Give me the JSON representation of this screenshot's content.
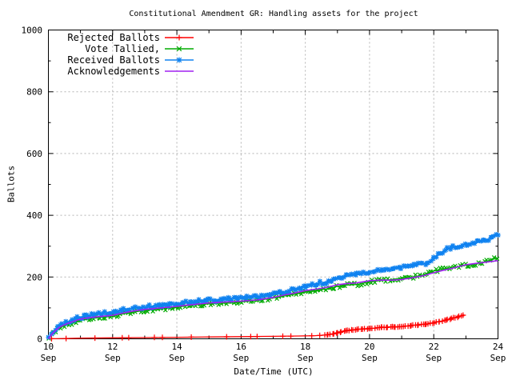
{
  "chart_data": {
    "type": "line",
    "title": "Constitutional Amendment GR: Handling assets for the project",
    "xlabel": "Date/Time (UTC)",
    "ylabel": "Ballots",
    "ylim": [
      0,
      1000
    ],
    "xlim_days": [
      10,
      24
    ],
    "grid": true,
    "legend_position": "top-left",
    "grid_color": "#b4b4b4",
    "y_ticks": [
      {
        "value": 0,
        "label": "0"
      },
      {
        "value": 200,
        "label": "200"
      },
      {
        "value": 400,
        "label": "400"
      },
      {
        "value": 600,
        "label": "600"
      },
      {
        "value": 800,
        "label": "800"
      },
      {
        "value": 1000,
        "label": "1000"
      }
    ],
    "y_minor_step": 100,
    "x_ticks": [
      {
        "day": 10,
        "label": "10",
        "sub": "Sep"
      },
      {
        "day": 12,
        "label": "12",
        "sub": "Sep"
      },
      {
        "day": 14,
        "label": "14",
        "sub": "Sep"
      },
      {
        "day": 16,
        "label": "16",
        "sub": "Sep"
      },
      {
        "day": 18,
        "label": "18",
        "sub": "Sep"
      },
      {
        "day": 20,
        "label": "20",
        "sub": "Sep"
      },
      {
        "day": 22,
        "label": "22",
        "sub": "Sep"
      },
      {
        "day": 24,
        "label": "24",
        "sub": "Sep"
      }
    ],
    "x_minor_days": [
      11,
      13,
      15,
      17,
      19,
      21,
      23
    ],
    "series": [
      {
        "name": "Rejected Ballots",
        "color": "#ff0000",
        "marker": "plus",
        "markers": {
          "mode": "sparse+dense",
          "days": [
            10.1,
            10.55,
            11.45,
            12.3,
            12.5,
            13.3,
            13.55,
            14.45,
            15.55,
            16.3,
            16.5,
            17.3,
            17.55,
            18.2,
            18.45
          ],
          "from": 18.6,
          "to": 22.95,
          "step": 0.06
        },
        "points": [
          [
            10.0,
            0
          ],
          [
            10.5,
            1
          ],
          [
            11.0,
            2
          ],
          [
            12.0,
            3
          ],
          [
            13.0,
            4
          ],
          [
            14.0,
            5
          ],
          [
            15.0,
            6
          ],
          [
            16.0,
            7
          ],
          [
            17.0,
            8
          ],
          [
            17.8,
            9
          ],
          [
            18.3,
            10
          ],
          [
            18.6,
            12
          ],
          [
            18.75,
            14
          ],
          [
            18.9,
            17
          ],
          [
            19.0,
            19
          ],
          [
            19.15,
            23
          ],
          [
            19.3,
            26
          ],
          [
            19.5,
            29
          ],
          [
            19.7,
            31
          ],
          [
            20.0,
            33
          ],
          [
            20.2,
            35
          ],
          [
            20.4,
            37
          ],
          [
            20.6,
            38
          ],
          [
            20.8,
            39
          ],
          [
            21.0,
            40
          ],
          [
            21.2,
            42
          ],
          [
            21.4,
            44
          ],
          [
            21.6,
            46
          ],
          [
            21.8,
            48
          ],
          [
            22.0,
            52
          ],
          [
            22.15,
            55
          ],
          [
            22.3,
            59
          ],
          [
            22.45,
            62
          ],
          [
            22.6,
            67
          ],
          [
            22.75,
            71
          ],
          [
            22.9,
            75
          ],
          [
            22.95,
            78
          ]
        ]
      },
      {
        "name": "Vote Tallied,",
        "color": "#00ab00",
        "marker": "cross",
        "markers": {
          "mode": "dense",
          "from": 10.02,
          "to": 24,
          "step": 0.07
        },
        "points": [
          [
            10.0,
            0
          ],
          [
            10.1,
            12
          ],
          [
            10.25,
            28
          ],
          [
            10.4,
            38
          ],
          [
            10.6,
            47
          ],
          [
            10.8,
            54
          ],
          [
            11.0,
            60
          ],
          [
            11.3,
            65
          ],
          [
            11.6,
            69
          ],
          [
            12.0,
            73
          ],
          [
            12.3,
            80
          ],
          [
            12.6,
            86
          ],
          [
            13.0,
            92
          ],
          [
            13.3,
            95
          ],
          [
            13.6,
            98
          ],
          [
            14.0,
            102
          ],
          [
            14.3,
            107
          ],
          [
            14.6,
            110
          ],
          [
            15.0,
            113
          ],
          [
            15.5,
            117
          ],
          [
            16.0,
            120
          ],
          [
            16.5,
            124
          ],
          [
            17.0,
            132
          ],
          [
            17.3,
            138
          ],
          [
            17.6,
            143
          ],
          [
            18.0,
            152
          ],
          [
            18.4,
            158
          ],
          [
            18.7,
            162
          ],
          [
            19.0,
            170
          ],
          [
            19.3,
            174
          ],
          [
            19.6,
            176
          ],
          [
            20.0,
            184
          ],
          [
            20.3,
            188
          ],
          [
            20.6,
            191
          ],
          [
            21.0,
            196
          ],
          [
            21.4,
            201
          ],
          [
            21.7,
            207
          ],
          [
            22.0,
            220
          ],
          [
            22.3,
            226
          ],
          [
            22.6,
            231
          ],
          [
            23.0,
            238
          ],
          [
            23.3,
            242
          ],
          [
            23.6,
            250
          ],
          [
            24.0,
            262
          ]
        ]
      },
      {
        "name": "Received Ballots",
        "color": "#0f82f0",
        "marker": "star",
        "markers": {
          "mode": "dense",
          "from": 10.02,
          "to": 24,
          "step": 0.06
        },
        "points": [
          [
            10.0,
            2
          ],
          [
            10.1,
            16
          ],
          [
            10.25,
            33
          ],
          [
            10.4,
            44
          ],
          [
            10.6,
            54
          ],
          [
            10.8,
            62
          ],
          [
            11.0,
            70
          ],
          [
            11.3,
            76
          ],
          [
            11.6,
            81
          ],
          [
            12.0,
            86
          ],
          [
            12.3,
            94
          ],
          [
            12.6,
            99
          ],
          [
            13.0,
            103
          ],
          [
            13.3,
            106
          ],
          [
            13.6,
            109
          ],
          [
            14.0,
            112
          ],
          [
            14.3,
            117
          ],
          [
            14.6,
            121
          ],
          [
            15.0,
            124
          ],
          [
            15.5,
            128
          ],
          [
            16.0,
            132
          ],
          [
            16.5,
            136
          ],
          [
            17.0,
            143
          ],
          [
            17.3,
            150
          ],
          [
            17.6,
            159
          ],
          [
            18.0,
            170
          ],
          [
            18.4,
            180
          ],
          [
            18.7,
            184
          ],
          [
            19.0,
            197
          ],
          [
            19.3,
            205
          ],
          [
            19.6,
            207
          ],
          [
            20.0,
            217
          ],
          [
            20.3,
            222
          ],
          [
            20.6,
            225
          ],
          [
            21.0,
            232
          ],
          [
            21.4,
            238
          ],
          [
            21.7,
            244
          ],
          [
            21.9,
            252
          ],
          [
            22.1,
            268
          ],
          [
            22.3,
            283
          ],
          [
            22.5,
            294
          ],
          [
            22.8,
            300
          ],
          [
            23.0,
            306
          ],
          [
            23.3,
            312
          ],
          [
            23.6,
            318
          ],
          [
            24.0,
            337
          ]
        ]
      },
      {
        "name": "Acknowledgements",
        "color": "#a020f0",
        "marker": "none",
        "markers": {
          "mode": "none"
        },
        "points": [
          [
            10.0,
            0
          ],
          [
            10.1,
            14
          ],
          [
            10.25,
            30
          ],
          [
            10.4,
            41
          ],
          [
            10.6,
            50
          ],
          [
            10.8,
            57
          ],
          [
            11.0,
            64
          ],
          [
            11.3,
            69
          ],
          [
            11.6,
            72
          ],
          [
            12.0,
            76
          ],
          [
            12.3,
            83
          ],
          [
            12.6,
            89
          ],
          [
            13.0,
            95
          ],
          [
            13.3,
            98
          ],
          [
            13.6,
            101
          ],
          [
            14.0,
            105
          ],
          [
            14.3,
            109
          ],
          [
            14.6,
            112
          ],
          [
            15.0,
            116
          ],
          [
            15.5,
            119
          ],
          [
            16.0,
            122
          ],
          [
            16.5,
            126
          ],
          [
            17.0,
            134
          ],
          [
            17.3,
            141
          ],
          [
            17.6,
            147
          ],
          [
            18.0,
            156
          ],
          [
            18.4,
            162
          ],
          [
            18.7,
            167
          ],
          [
            19.0,
            175
          ],
          [
            19.3,
            179
          ],
          [
            19.6,
            181
          ],
          [
            20.0,
            188
          ],
          [
            20.3,
            190
          ],
          [
            20.7,
            190
          ],
          [
            21.0,
            192
          ],
          [
            21.4,
            199
          ],
          [
            21.7,
            205
          ],
          [
            22.0,
            214
          ],
          [
            22.3,
            222
          ],
          [
            22.6,
            229
          ],
          [
            23.0,
            240
          ],
          [
            23.3,
            244
          ],
          [
            23.6,
            248
          ],
          [
            24.0,
            253
          ]
        ]
      }
    ]
  }
}
